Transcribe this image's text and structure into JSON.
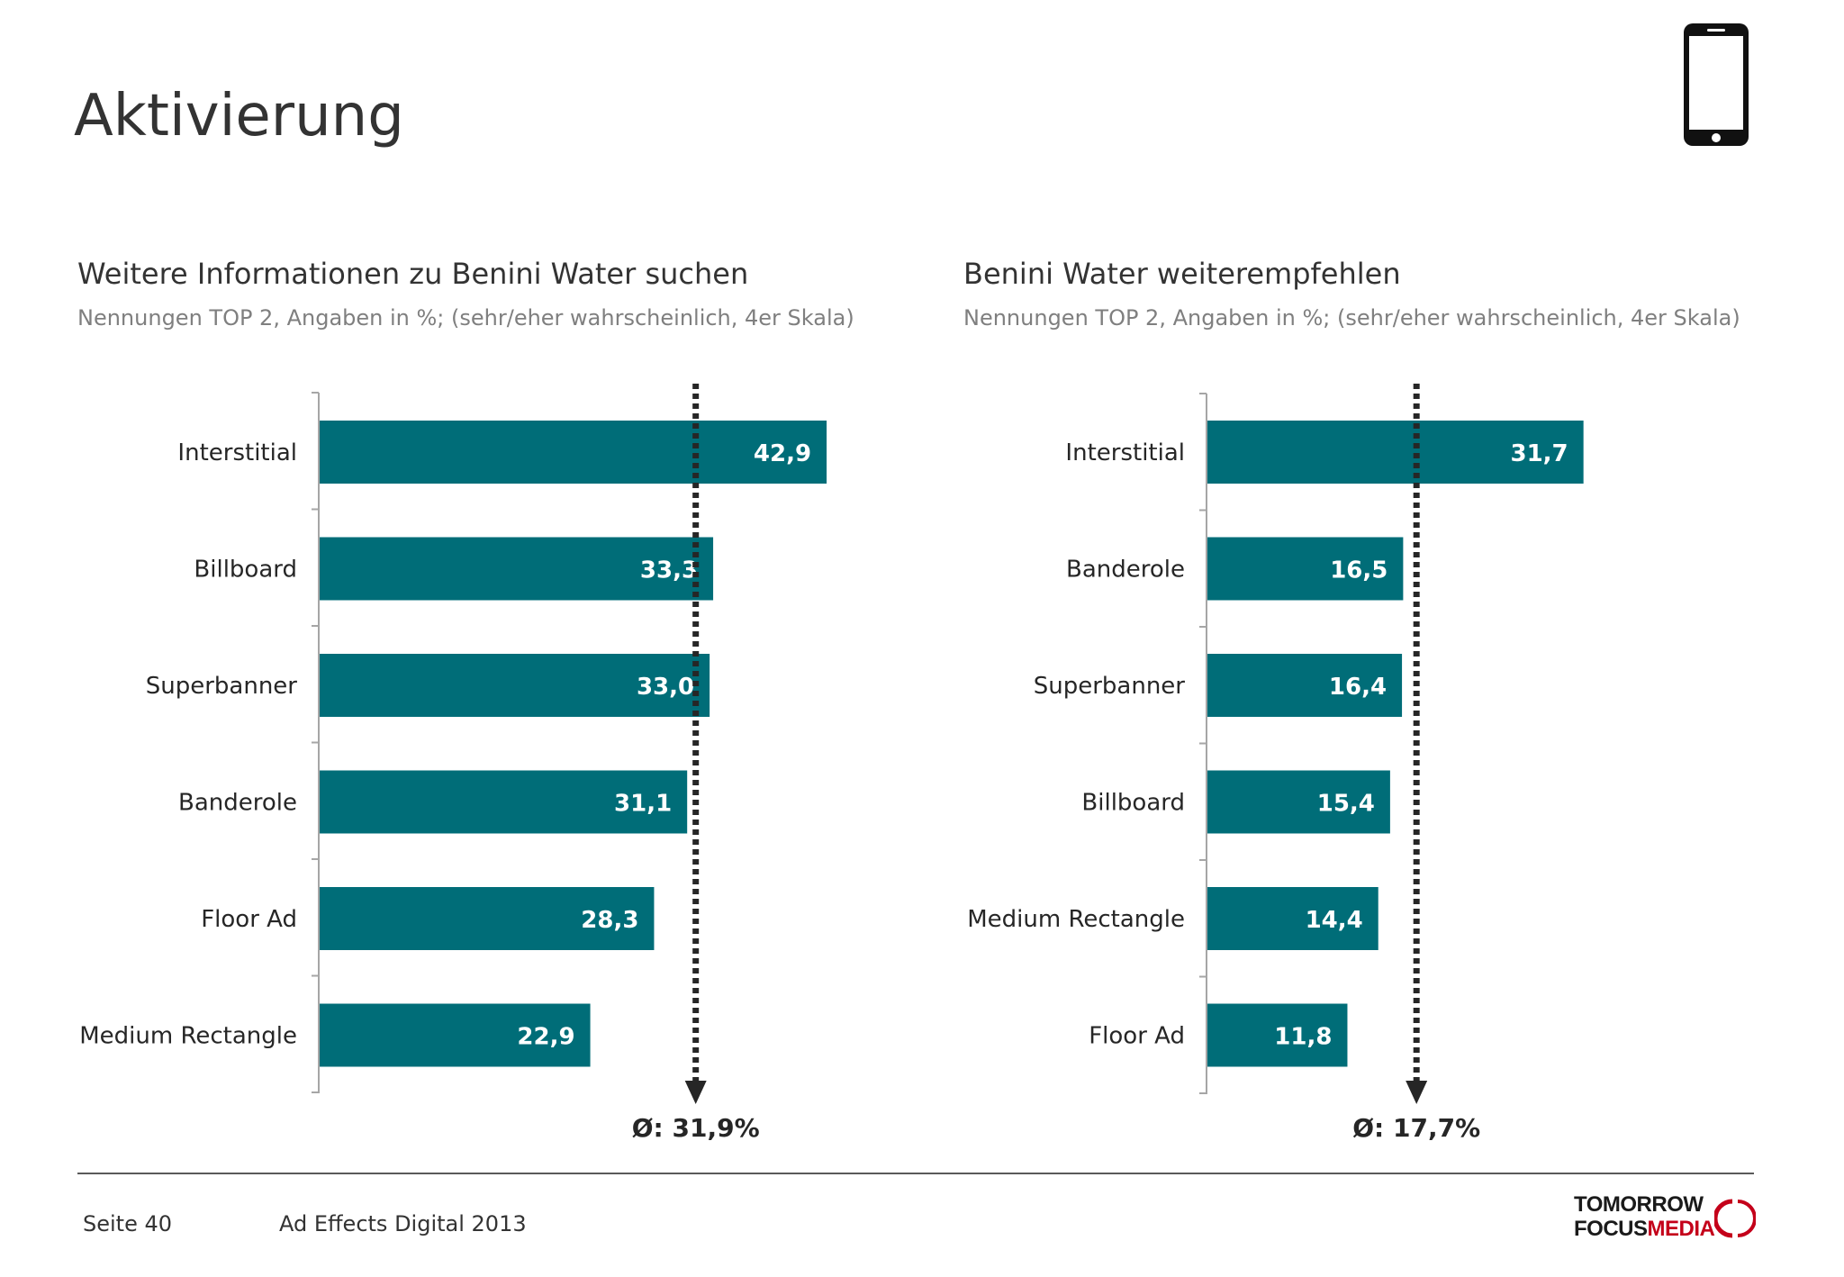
{
  "page": {
    "title": "Aktivierung",
    "footer": {
      "page_label": "Seite 40",
      "study": "Ad Effects Digital 2013"
    },
    "logo": {
      "line1": "TOMORROW",
      "line2_a": "FOCUS",
      "line2_b": "MEDIA"
    },
    "icons": {
      "device": "smartphone-icon",
      "logo_mark": "logo-arc-icon"
    }
  },
  "colors": {
    "bar": "#006d78",
    "bar_label": "#ffffff",
    "avg_line": "#262626",
    "logo_accent": "#c4001a"
  },
  "chart_data": [
    {
      "type": "bar",
      "orientation": "horizontal",
      "title": "Weitere Informationen zu Benini Water suchen",
      "subtitle": "Nennungen TOP 2, Angaben in %; (sehr/eher wahrscheinlich, 4er Skala)",
      "categories": [
        "Interstitial",
        "Billboard",
        "Superbanner",
        "Banderole",
        "Floor Ad",
        "Medium Rectangle"
      ],
      "values": [
        42.9,
        33.3,
        33.0,
        31.1,
        28.3,
        22.9
      ],
      "value_labels": [
        "42,9",
        "33,3",
        "33,0",
        "31,1",
        "28,3",
        "22,9"
      ],
      "average": 31.9,
      "average_label": "Ø: 31,9%",
      "xlim": [
        0,
        50
      ]
    },
    {
      "type": "bar",
      "orientation": "horizontal",
      "title": "Benini Water weiterempfehlen",
      "subtitle": "Nennungen TOP 2, Angaben in %; (sehr/eher wahrscheinlich, 4er Skala)",
      "categories": [
        "Interstitial",
        "Banderole",
        "Superbanner",
        "Billboard",
        "Medium Rectangle",
        "Floor Ad"
      ],
      "values": [
        31.7,
        16.5,
        16.4,
        15.4,
        14.4,
        11.8
      ],
      "value_labels": [
        "31,7",
        "16,5",
        "16,4",
        "15,4",
        "14,4",
        "11,8"
      ],
      "average": 17.7,
      "average_label": "Ø: 17,7%",
      "xlim": [
        0,
        37
      ]
    }
  ]
}
